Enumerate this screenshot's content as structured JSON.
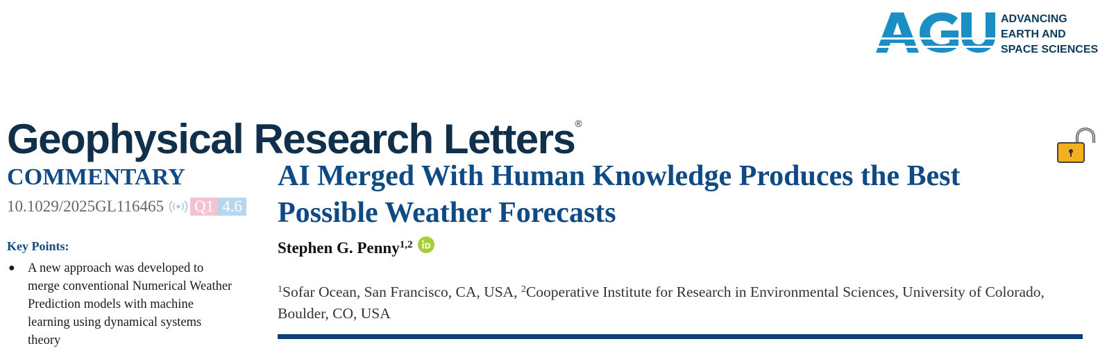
{
  "publisher": {
    "logo_text": "AGU",
    "tagline": [
      "ADVANCING",
      "EARTH AND",
      "SPACE SCIENCES"
    ],
    "logo_color": "#1b8fc4",
    "tagline_color": "#0b3b5c"
  },
  "journal": {
    "title": "Geophysical Research Letters",
    "registered_mark": "®"
  },
  "open_access_icon": "unlocked-padlock-icon",
  "article_type": "COMMENTARY",
  "doi": "10.1029/2025GL116465",
  "badges": {
    "quartile": "Q1",
    "impact_factor": "4.6"
  },
  "key_points": {
    "heading": "Key Points:",
    "items": [
      "A new approach was developed to merge conventional Numerical Weather Prediction models with machine learning using dynamical systems theory"
    ]
  },
  "article": {
    "title": "AI Merged With Human Knowledge Produces the Best Possible Weather Forecasts",
    "author_name": "Stephen G. Penny",
    "author_affiliation_marks": "1,2",
    "affiliations": [
      {
        "mark": "1",
        "text": "Sofar Ocean, San Francisco, CA, USA, "
      },
      {
        "mark": "2",
        "text": "Cooperative Institute for Research in Environmental Sciences, University of Colorado, Boulder, CO, USA"
      }
    ]
  },
  "colors": {
    "heading_blue": "#0f4a85",
    "journal_navy": "#0f2f4a",
    "orcid_green": "#a6ce39",
    "rule_blue": "#0f3f75"
  }
}
